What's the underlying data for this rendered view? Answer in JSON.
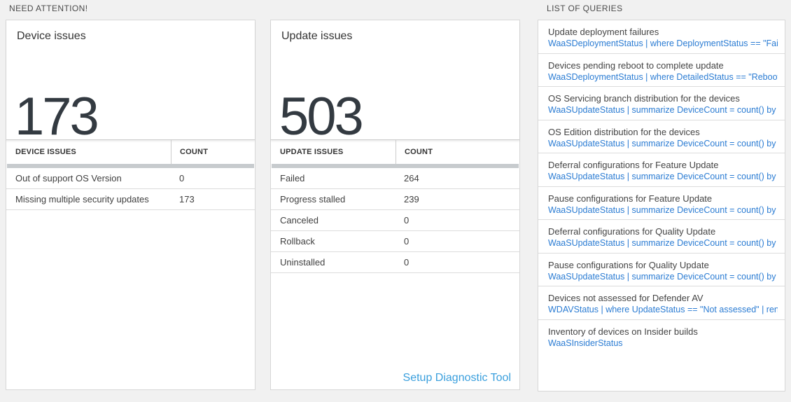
{
  "sections": {
    "need_attention": {
      "label": "NEED ATTENTION!"
    },
    "list_of_queries": {
      "label": "LIST OF QUERIES"
    }
  },
  "device_issues_tile": {
    "title": "Device issues",
    "big_number": "173",
    "table": {
      "columns": [
        "DEVICE ISSUES",
        "COUNT"
      ],
      "rows": [
        {
          "label": "Out of support OS Version",
          "count": "0"
        },
        {
          "label": "Missing multiple security updates",
          "count": "173"
        }
      ]
    }
  },
  "update_issues_tile": {
    "title": "Update issues",
    "big_number": "503",
    "table": {
      "columns": [
        "UPDATE ISSUES",
        "COUNT"
      ],
      "rows": [
        {
          "label": "Failed",
          "count": "264"
        },
        {
          "label": "Progress stalled",
          "count": "239"
        },
        {
          "label": "Canceled",
          "count": "0"
        },
        {
          "label": "Rollback",
          "count": "0"
        },
        {
          "label": "Uninstalled",
          "count": "0"
        }
      ]
    },
    "footer_link": "Setup Diagnostic Tool"
  },
  "queries_panel": {
    "items": [
      {
        "title": "Update deployment failures",
        "query": "WaaSDeploymentStatus | where DeploymentStatus == \"Failed\" |..."
      },
      {
        "title": "Devices pending reboot to complete update",
        "query": "WaaSDeploymentStatus | where DetailedStatus == \"Reboot pend..."
      },
      {
        "title": "OS Servicing branch distribution for the devices",
        "query": "WaaSUpdateStatus | summarize DeviceCount = count() by OSSer..."
      },
      {
        "title": "OS Edition distribution for the devices",
        "query": "WaaSUpdateStatus | summarize DeviceCount = count() by OSEdit..."
      },
      {
        "title": "Deferral configurations for Feature Update",
        "query": "WaaSUpdateStatus | summarize DeviceCount = count() by Featur..."
      },
      {
        "title": "Pause configurations for Feature Update",
        "query": "WaaSUpdateStatus | summarize DeviceCount = count() by Featur..."
      },
      {
        "title": "Deferral configurations for Quality Update",
        "query": "WaaSUpdateStatus | summarize DeviceCount = count() by Qualit..."
      },
      {
        "title": "Pause configurations for Quality Update",
        "query": "WaaSUpdateStatus | summarize DeviceCount = count() by Qualit..."
      },
      {
        "title": "Devices not assessed for Defender AV",
        "query": "WDAVStatus | where UpdateStatus == \"Not assessed\" | render ta..."
      },
      {
        "title": "Inventory of devices on Insider builds",
        "query": "WaaSInsiderStatus"
      }
    ]
  },
  "colors": {
    "page_background": "#f1f1f1",
    "tile_border": "#d7d7d7",
    "big_number_text": "#333a41",
    "table_divider_bar": "#c7cbce",
    "query_link_blue": "#2b7cd3",
    "diagnostic_link_blue": "#3a9fdd"
  }
}
